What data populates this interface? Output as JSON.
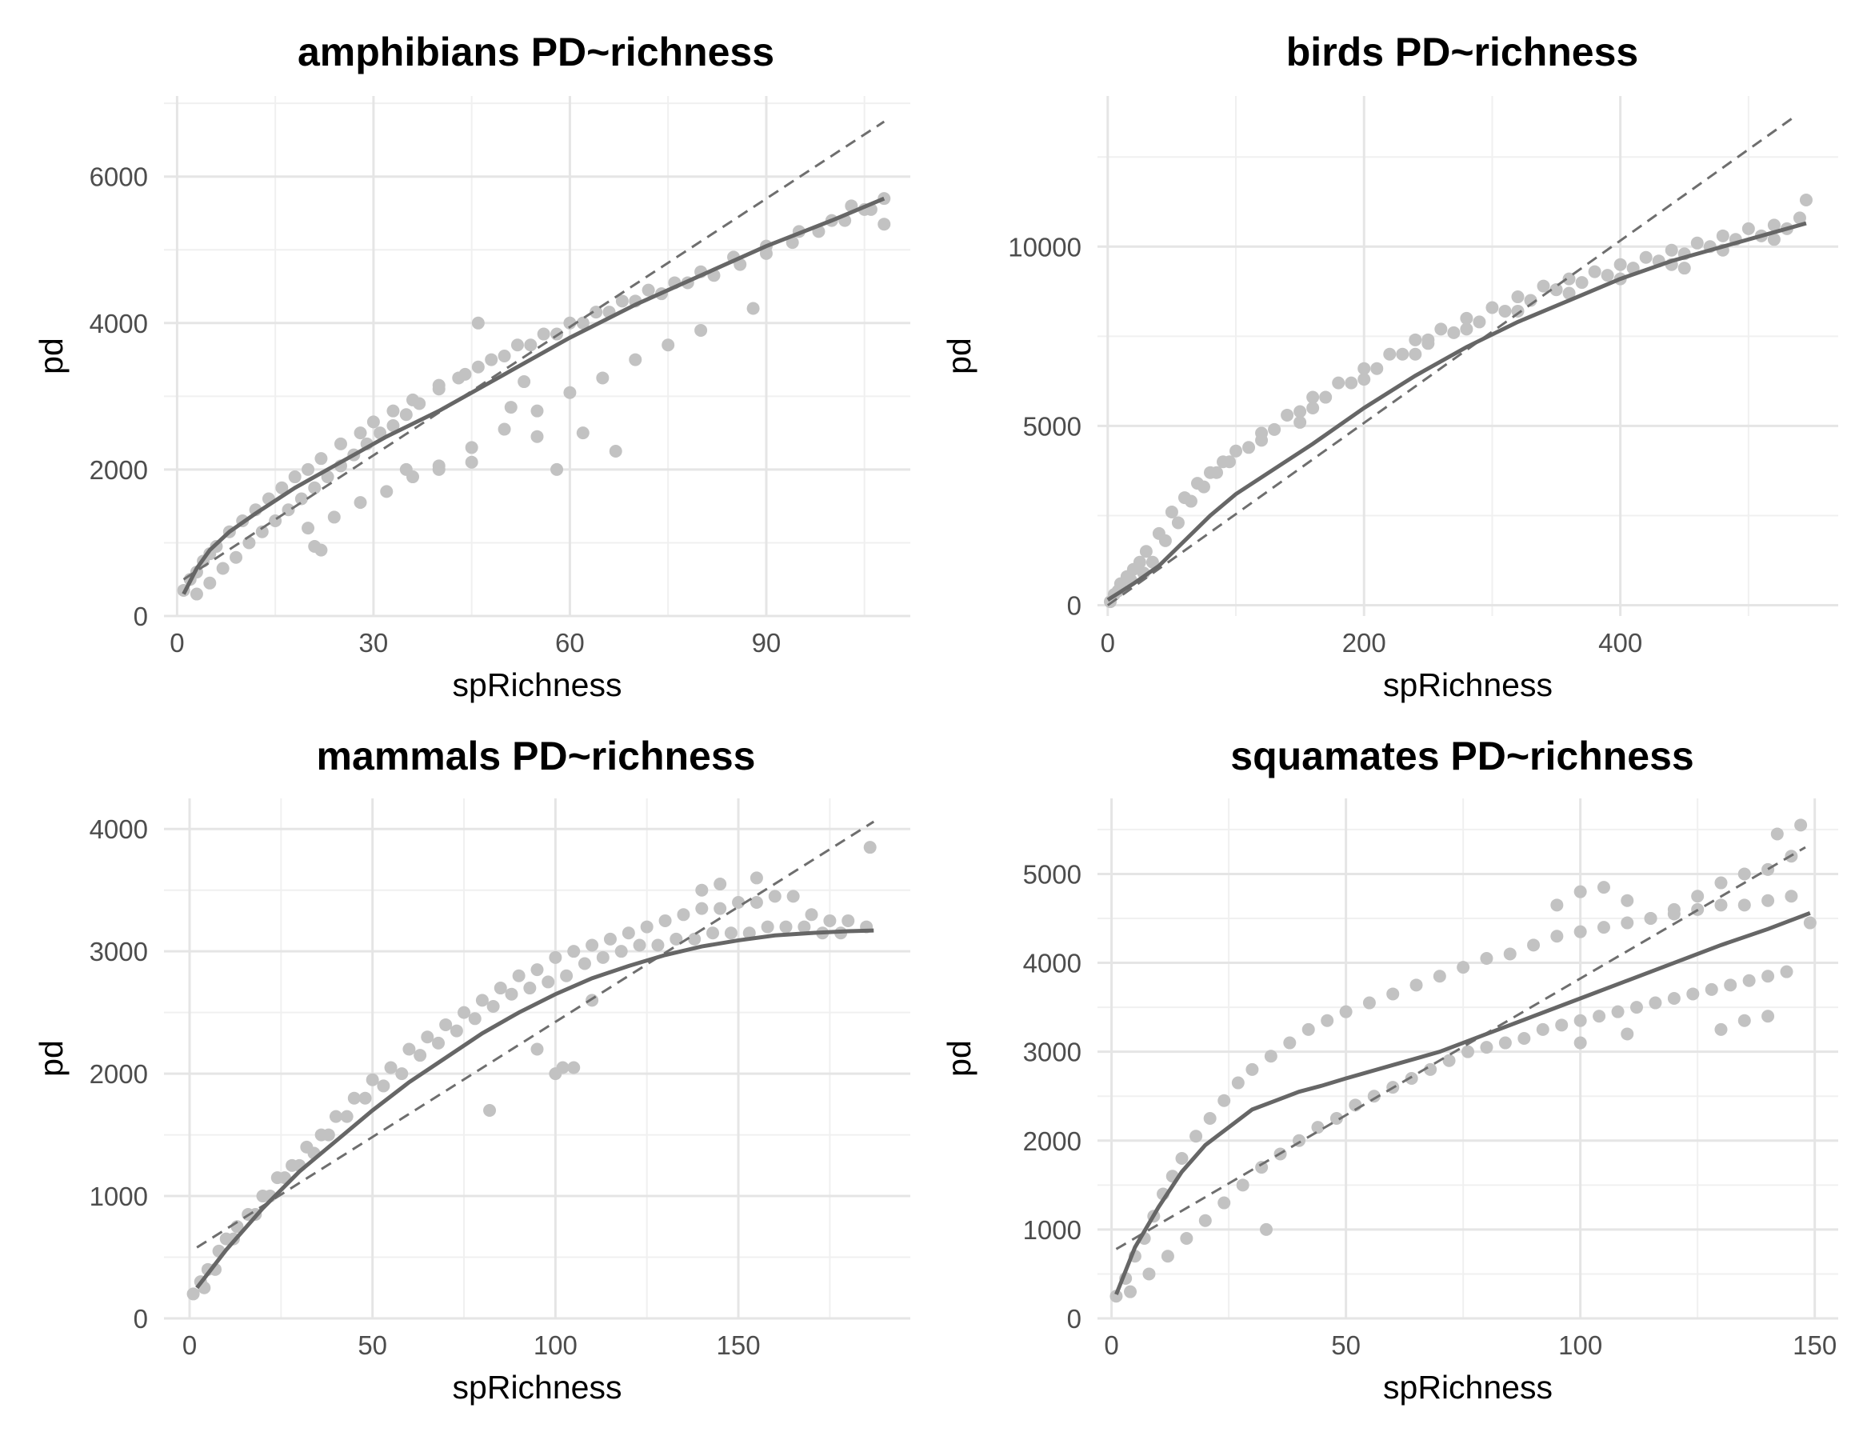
{
  "chart_data": [
    {
      "type": "scatter",
      "title": "amphibians PD~richness",
      "xlabel": "spRichness",
      "ylabel": "pd",
      "xlim": [
        -2,
        112
      ],
      "ylim": [
        0,
        7100
      ],
      "xticks": [
        0,
        30,
        60,
        90
      ],
      "yticks": [
        0,
        2000,
        4000,
        6000
      ],
      "xminor": [
        15,
        45,
        75,
        105
      ],
      "yminor": [
        1000,
        3000,
        5000,
        7000
      ],
      "colors": {
        "points": "#c2c2c2",
        "lines": "#666666"
      },
      "series": [
        {
          "kind": "points",
          "x": [
            1,
            2,
            3,
            4,
            5,
            6,
            8,
            10,
            12,
            14,
            16,
            18,
            20,
            22,
            25,
            28,
            30,
            33,
            36,
            40,
            44,
            48,
            52,
            56,
            60,
            64,
            68,
            72,
            76,
            80,
            85,
            90,
            95,
            100,
            105,
            108,
            3,
            5,
            7,
            9,
            11,
            13,
            15,
            17,
            19,
            21,
            23,
            25,
            27,
            29,
            31,
            33,
            35,
            37,
            40,
            43,
            46,
            50,
            54,
            58,
            62,
            66,
            70,
            74,
            78,
            82,
            86,
            90,
            94,
            98,
            102,
            106,
            20,
            24,
            28,
            32,
            36,
            40,
            45,
            50,
            55,
            60,
            65,
            70,
            75,
            80,
            46,
            51,
            55,
            58,
            62,
            67,
            53,
            21,
            22,
            35,
            40,
            45,
            88,
            103,
            108
          ],
          "y": [
            350,
            500,
            600,
            750,
            850,
            950,
            1150,
            1300,
            1450,
            1600,
            1750,
            1900,
            2000,
            2150,
            2350,
            2500,
            2650,
            2800,
            2950,
            3150,
            3300,
            3500,
            3700,
            3850,
            4000,
            4150,
            4300,
            4450,
            4550,
            4700,
            4900,
            5050,
            5250,
            5400,
            5550,
            5700,
            300,
            450,
            650,
            800,
            1000,
            1150,
            1300,
            1450,
            1600,
            1750,
            1900,
            2050,
            2200,
            2350,
            2500,
            2600,
            2750,
            2900,
            3100,
            3250,
            3400,
            3550,
            3700,
            3850,
            4000,
            4150,
            4300,
            4400,
            4550,
            4650,
            4800,
            4950,
            5100,
            5250,
            5400,
            5550,
            1200,
            1350,
            1550,
            1700,
            1900,
            2050,
            2300,
            2550,
            2800,
            3050,
            3250,
            3500,
            3700,
            3900,
            4000,
            2850,
            2450,
            2000,
            2500,
            2250,
            3200,
            950,
            900,
            2000,
            2000,
            2100,
            4200,
            5600,
            5350
          ]
        },
        {
          "kind": "fit",
          "x": [
            1,
            3,
            5,
            8,
            12,
            18,
            25,
            32,
            40,
            50,
            60,
            70,
            80,
            90,
            100,
            108
          ],
          "y": [
            300,
            650,
            900,
            1150,
            1400,
            1750,
            2100,
            2450,
            2800,
            3300,
            3800,
            4250,
            4650,
            5050,
            5400,
            5700
          ]
        },
        {
          "kind": "reference",
          "x": [
            1,
            108
          ],
          "y": [
            500,
            6750
          ]
        }
      ]
    },
    {
      "type": "scatter",
      "title": "birds PD~richness",
      "xlabel": "spRichness",
      "ylabel": "pd",
      "xlim": [
        -8,
        570
      ],
      "ylim": [
        -300,
        14200
      ],
      "xticks": [
        0,
        200,
        400
      ],
      "yticks": [
        0,
        5000,
        10000
      ],
      "xminor": [
        100,
        300,
        500
      ],
      "yminor": [
        2500,
        7500,
        12500
      ],
      "colors": {
        "points": "#c2c2c2",
        "lines": "#666666"
      },
      "series": [
        {
          "kind": "points",
          "x": [
            2,
            5,
            10,
            15,
            20,
            25,
            30,
            40,
            50,
            60,
            70,
            80,
            90,
            100,
            120,
            140,
            160,
            180,
            200,
            220,
            240,
            260,
            280,
            300,
            320,
            340,
            360,
            380,
            400,
            420,
            440,
            460,
            480,
            500,
            520,
            540,
            8,
            18,
            28,
            35,
            45,
            55,
            65,
            75,
            85,
            95,
            110,
            130,
            150,
            170,
            190,
            210,
            230,
            250,
            270,
            290,
            310,
            330,
            350,
            370,
            390,
            410,
            430,
            450,
            470,
            490,
            510,
            530,
            545,
            120,
            160,
            200,
            240,
            280,
            320,
            360,
            400,
            440,
            480,
            520,
            150,
            250,
            350,
            450
          ],
          "y": [
            100,
            300,
            600,
            800,
            1000,
            1200,
            1500,
            2000,
            2600,
            3000,
            3400,
            3700,
            4000,
            4300,
            4800,
            5300,
            5800,
            6200,
            6600,
            7000,
            7400,
            7700,
            8000,
            8300,
            8600,
            8900,
            9100,
            9300,
            9500,
            9700,
            9900,
            10100,
            10300,
            10500,
            10600,
            10800,
            400,
            700,
            900,
            1200,
            1800,
            2300,
            2900,
            3300,
            3700,
            4000,
            4400,
            4900,
            5400,
            5800,
            6200,
            6600,
            7000,
            7300,
            7600,
            7900,
            8200,
            8500,
            8800,
            9000,
            9200,
            9400,
            9600,
            9800,
            10000,
            10200,
            10300,
            10500,
            11300,
            4600,
            5500,
            6300,
            7000,
            7700,
            8200,
            8700,
            9100,
            9500,
            9900,
            10200,
            5100,
            7400,
            8800,
            9400
          ]
        },
        {
          "kind": "fit",
          "x": [
            0,
            20,
            40,
            60,
            80,
            100,
            130,
            160,
            200,
            240,
            280,
            320,
            360,
            400,
            440,
            480,
            520,
            545
          ],
          "y": [
            150,
            600,
            1100,
            1800,
            2500,
            3100,
            3800,
            4500,
            5500,
            6400,
            7200,
            7900,
            8500,
            9100,
            9600,
            10000,
            10400,
            10650
          ]
        },
        {
          "kind": "reference",
          "x": [
            0,
            535
          ],
          "y": [
            0,
            13600
          ]
        }
      ]
    },
    {
      "type": "scatter",
      "title": "mammals PD~richness",
      "xlabel": "spRichness",
      "ylabel": "pd",
      "xlim": [
        -7,
        197
      ],
      "ylim": [
        0,
        4250
      ],
      "xticks": [
        0,
        50,
        100,
        150
      ],
      "yticks": [
        0,
        1000,
        2000,
        3000,
        4000
      ],
      "xminor": [
        25,
        75,
        125,
        175
      ],
      "yminor": [
        500,
        1500,
        2500,
        3500
      ],
      "colors": {
        "points": "#c2c2c2",
        "lines": "#666666"
      },
      "series": [
        {
          "kind": "points",
          "x": [
            1,
            3,
            5,
            8,
            10,
            13,
            16,
            20,
            24,
            28,
            32,
            36,
            40,
            45,
            50,
            55,
            60,
            65,
            70,
            75,
            80,
            85,
            90,
            95,
            100,
            105,
            110,
            115,
            120,
            125,
            130,
            135,
            140,
            145,
            150,
            155,
            160,
            165,
            170,
            175,
            180,
            185,
            4,
            7,
            12,
            18,
            22,
            26,
            30,
            34,
            38,
            43,
            48,
            53,
            58,
            63,
            68,
            73,
            78,
            83,
            88,
            93,
            98,
            103,
            108,
            113,
            118,
            123,
            128,
            133,
            138,
            143,
            148,
            153,
            158,
            163,
            168,
            173,
            178,
            100,
            102,
            105,
            82,
            95,
            110,
            145,
            140,
            155,
            186
          ],
          "y": [
            200,
            300,
            400,
            550,
            650,
            750,
            850,
            1000,
            1150,
            1250,
            1400,
            1500,
            1650,
            1800,
            1950,
            2050,
            2200,
            2300,
            2400,
            2500,
            2600,
            2700,
            2800,
            2850,
            2950,
            3000,
            3050,
            3100,
            3150,
            3200,
            3250,
            3300,
            3350,
            3350,
            3400,
            3400,
            3450,
            3450,
            3300,
            3250,
            3250,
            3200,
            250,
            400,
            650,
            850,
            1000,
            1150,
            1250,
            1350,
            1500,
            1650,
            1800,
            1900,
            2000,
            2150,
            2250,
            2350,
            2450,
            2550,
            2650,
            2700,
            2750,
            2800,
            2900,
            2950,
            3000,
            3050,
            3050,
            3100,
            3100,
            3150,
            3150,
            3150,
            3200,
            3200,
            3200,
            3150,
            3150,
            2000,
            2050,
            2050,
            1700,
            2200,
            2600,
            3550,
            3500,
            3600,
            3850
          ]
        },
        {
          "kind": "fit",
          "x": [
            2,
            10,
            20,
            30,
            40,
            50,
            60,
            70,
            80,
            90,
            100,
            110,
            120,
            130,
            140,
            150,
            160,
            170,
            180,
            187
          ],
          "y": [
            250,
            560,
            900,
            1200,
            1450,
            1700,
            1930,
            2130,
            2330,
            2500,
            2650,
            2780,
            2880,
            2970,
            3040,
            3090,
            3130,
            3150,
            3165,
            3170
          ]
        },
        {
          "kind": "reference",
          "x": [
            2,
            187
          ],
          "y": [
            580,
            4060
          ]
        }
      ]
    },
    {
      "type": "scatter",
      "title": "squamates PD~richness",
      "xlabel": "spRichness",
      "ylabel": "pd",
      "xlim": [
        -3,
        155
      ],
      "ylim": [
        0,
        5850
      ],
      "xticks": [
        0,
        50,
        100,
        150
      ],
      "yticks": [
        0,
        1000,
        2000,
        3000,
        4000,
        5000
      ],
      "xminor": [
        25,
        75,
        125
      ],
      "yminor": [
        500,
        1500,
        2500,
        3500,
        4500,
        5500
      ],
      "colors": {
        "points": "#c2c2c2",
        "lines": "#666666"
      },
      "series": [
        {
          "kind": "points",
          "x": [
            1,
            3,
            5,
            7,
            9,
            11,
            13,
            15,
            18,
            21,
            24,
            27,
            30,
            34,
            38,
            42,
            46,
            50,
            55,
            60,
            65,
            70,
            75,
            80,
            85,
            90,
            95,
            100,
            105,
            110,
            115,
            120,
            125,
            130,
            135,
            140,
            145,
            149,
            4,
            8,
            12,
            16,
            20,
            24,
            28,
            32,
            36,
            40,
            44,
            48,
            52,
            56,
            60,
            64,
            68,
            72,
            76,
            80,
            84,
            88,
            92,
            96,
            100,
            104,
            108,
            112,
            116,
            120,
            124,
            128,
            132,
            136,
            140,
            144,
            95,
            100,
            105,
            110,
            115,
            120,
            125,
            130,
            135,
            140,
            145,
            33,
            100,
            110,
            130,
            135,
            140,
            142,
            147
          ],
          "y": [
            250,
            450,
            700,
            900,
            1150,
            1400,
            1600,
            1800,
            2050,
            2250,
            2450,
            2650,
            2800,
            2950,
            3100,
            3250,
            3350,
            3450,
            3550,
            3650,
            3750,
            3850,
            3950,
            4050,
            4100,
            4200,
            4300,
            4350,
            4400,
            4450,
            4500,
            4550,
            4600,
            4650,
            4650,
            4700,
            4750,
            4450,
            300,
            500,
            700,
            900,
            1100,
            1300,
            1500,
            1700,
            1850,
            2000,
            2150,
            2250,
            2400,
            2500,
            2600,
            2700,
            2800,
            2900,
            3000,
            3050,
            3100,
            3150,
            3250,
            3300,
            3350,
            3400,
            3450,
            3500,
            3550,
            3600,
            3650,
            3700,
            3750,
            3800,
            3850,
            3900,
            4650,
            4800,
            4850,
            4700,
            4500,
            4600,
            4750,
            4900,
            5000,
            5050,
            5200,
            1000,
            3100,
            3200,
            3250,
            3350,
            3400,
            5450,
            5550
          ]
        },
        {
          "kind": "fit",
          "x": [
            1,
            5,
            10,
            15,
            20,
            25,
            30,
            35,
            40,
            45,
            50,
            60,
            70,
            80,
            90,
            100,
            110,
            120,
            130,
            140,
            149
          ],
          "y": [
            270,
            800,
            1250,
            1650,
            1950,
            2150,
            2350,
            2450,
            2550,
            2620,
            2700,
            2850,
            3000,
            3200,
            3400,
            3600,
            3800,
            4000,
            4200,
            4380,
            4560
          ]
        },
        {
          "kind": "reference",
          "x": [
            1,
            148
          ],
          "y": [
            780,
            5300
          ]
        }
      ]
    }
  ]
}
